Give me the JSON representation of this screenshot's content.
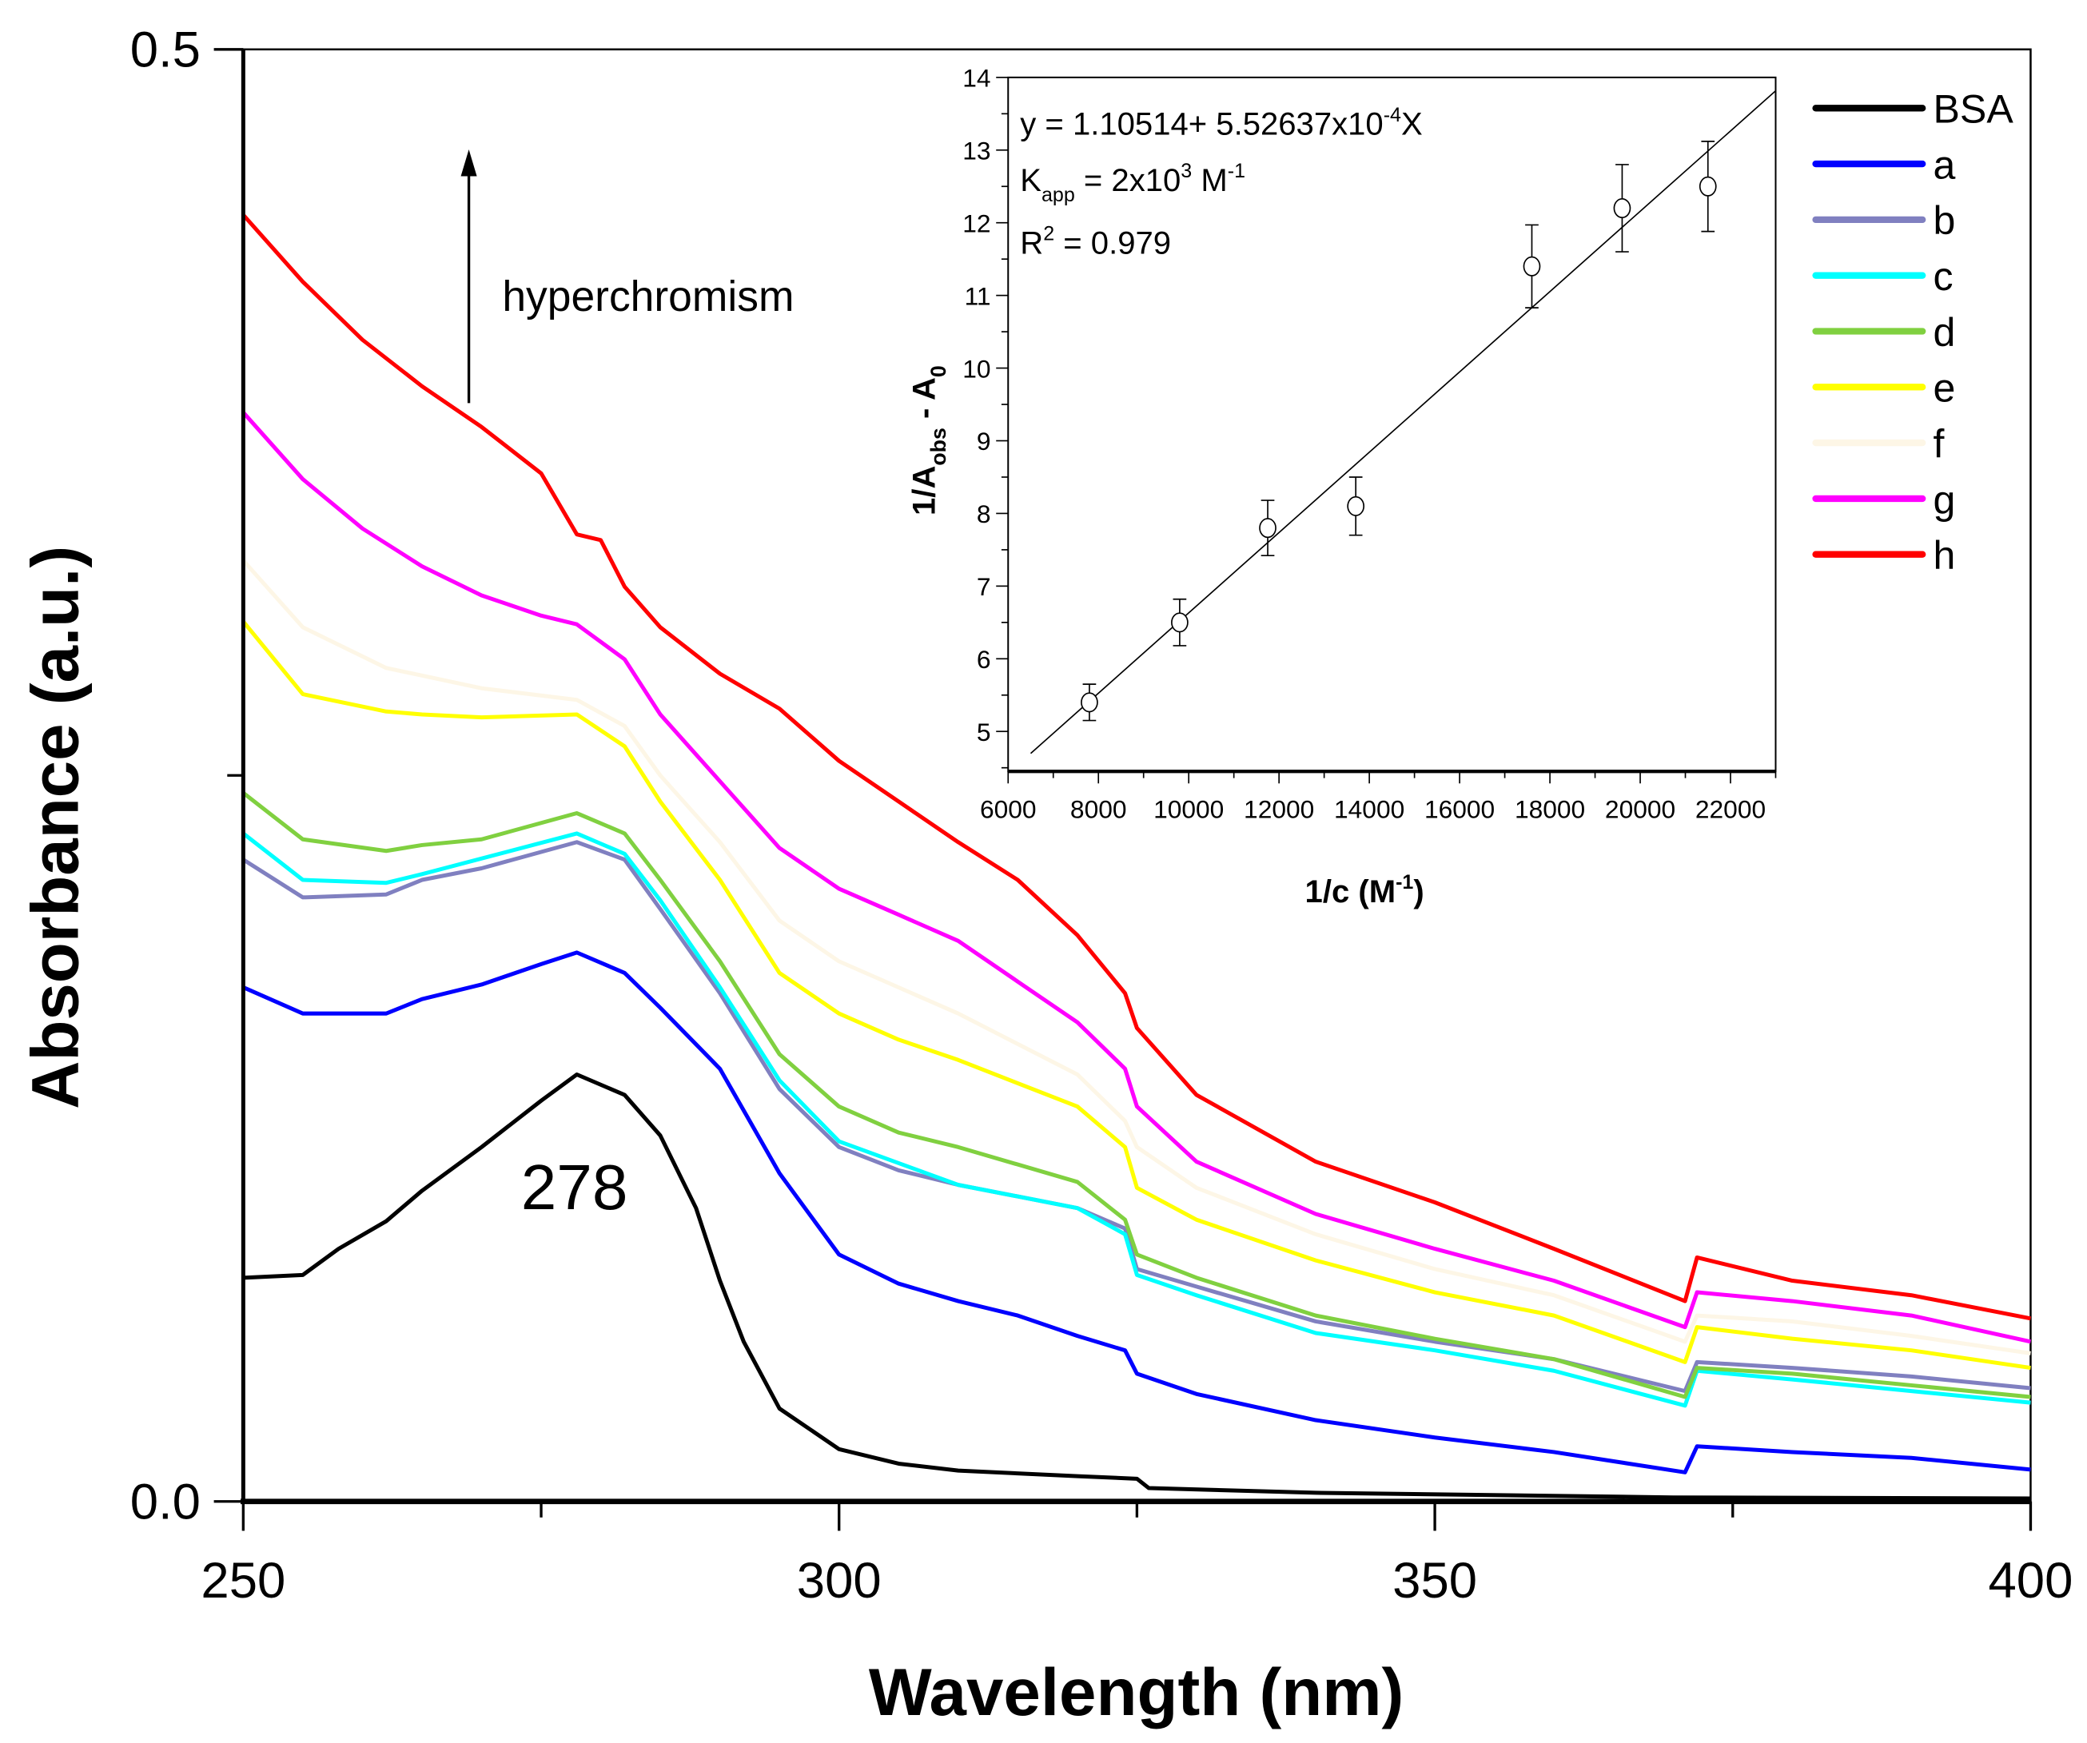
{
  "chart_data": [
    {
      "type": "line",
      "title": "",
      "xlabel": "Wavelength (nm)",
      "ylabel": "Absorbance (a.u.)",
      "xlim": [
        250,
        400
      ],
      "ylim": [
        0,
        0.5
      ],
      "xticks": [
        250,
        300,
        350,
        400
      ],
      "xtick_labels": [
        "250",
        "300",
        "350",
        "400"
      ],
      "yticks": [
        0.0,
        0.5
      ],
      "ytick_labels": [
        "0.0",
        "0.5"
      ],
      "grid": false,
      "legend_position": "top-right",
      "annotations": {
        "arrow_label": "hyperchromism",
        "peak_label": "278"
      },
      "series": [
        {
          "name": "BSA",
          "color": "#000000",
          "points": [
            [
              250,
              0.077
            ],
            [
              255,
              0.078
            ],
            [
              258,
              0.087
            ],
            [
              262,
              0.0965
            ],
            [
              265,
              0.107
            ],
            [
              270,
              0.122
            ],
            [
              275,
              0.138
            ],
            [
              278,
              0.147
            ],
            [
              282,
              0.14
            ],
            [
              285,
              0.126
            ],
            [
              288,
              0.101
            ],
            [
              290,
              0.076
            ],
            [
              292,
              0.055
            ],
            [
              295,
              0.032
            ],
            [
              300,
              0.018
            ],
            [
              305,
              0.013
            ],
            [
              310,
              0.0106
            ],
            [
              320,
              0.0087
            ],
            [
              325,
              0.0078
            ],
            [
              326,
              0.0046
            ],
            [
              340,
              0.003
            ],
            [
              370,
              0.0014
            ],
            [
              400,
              0.001
            ]
          ]
        },
        {
          "name": "a",
          "color": "#0000ff",
          "points": [
            [
              250,
              0.177
            ],
            [
              255,
              0.168
            ],
            [
              262,
              0.168
            ],
            [
              265,
              0.173
            ],
            [
              270,
              0.178
            ],
            [
              275,
              0.185
            ],
            [
              278,
              0.189
            ],
            [
              282,
              0.182
            ],
            [
              285,
              0.17
            ],
            [
              290,
              0.149
            ],
            [
              295,
              0.113
            ],
            [
              300,
              0.085
            ],
            [
              305,
              0.075
            ],
            [
              310,
              0.069
            ],
            [
              315,
              0.064
            ],
            [
              320,
              0.057
            ],
            [
              324,
              0.052
            ],
            [
              325,
              0.044
            ],
            [
              330,
              0.037
            ],
            [
              340,
              0.028
            ],
            [
              350,
              0.022
            ],
            [
              360,
              0.017
            ],
            [
              371,
              0.01
            ],
            [
              372,
              0.019
            ],
            [
              380,
              0.017
            ],
            [
              390,
              0.015
            ],
            [
              400,
              0.011
            ]
          ]
        },
        {
          "name": "b",
          "color": "#8080c0",
          "points": [
            [
              250,
              0.221
            ],
            [
              255,
              0.208
            ],
            [
              262,
              0.209
            ],
            [
              265,
              0.214
            ],
            [
              270,
              0.218
            ],
            [
              278,
              0.227
            ],
            [
              282,
              0.221
            ],
            [
              285,
              0.204
            ],
            [
              290,
              0.175
            ],
            [
              295,
              0.142
            ],
            [
              300,
              0.122
            ],
            [
              305,
              0.114
            ],
            [
              310,
              0.109
            ],
            [
              320,
              0.101
            ],
            [
              324,
              0.094
            ],
            [
              325,
              0.08
            ],
            [
              330,
              0.074
            ],
            [
              340,
              0.062
            ],
            [
              350,
              0.055
            ],
            [
              360,
              0.049
            ],
            [
              371,
              0.038
            ],
            [
              372,
              0.048
            ],
            [
              380,
              0.046
            ],
            [
              390,
              0.043
            ],
            [
              400,
              0.039
            ]
          ]
        },
        {
          "name": "c",
          "color": "#00ffff",
          "points": [
            [
              250,
              0.23
            ],
            [
              255,
              0.214
            ],
            [
              262,
              0.213
            ],
            [
              265,
              0.216
            ],
            [
              278,
              0.23
            ],
            [
              282,
              0.223
            ],
            [
              285,
              0.207
            ],
            [
              290,
              0.177
            ],
            [
              295,
              0.145
            ],
            [
              300,
              0.124
            ],
            [
              310,
              0.109
            ],
            [
              320,
              0.101
            ],
            [
              324,
              0.092
            ],
            [
              325,
              0.078
            ],
            [
              330,
              0.071
            ],
            [
              340,
              0.058
            ],
            [
              350,
              0.052
            ],
            [
              360,
              0.045
            ],
            [
              371,
              0.033
            ],
            [
              372,
              0.045
            ],
            [
              380,
              0.042
            ],
            [
              390,
              0.038
            ],
            [
              400,
              0.034
            ]
          ]
        },
        {
          "name": "d",
          "color": "#80d040",
          "points": [
            [
              250,
              0.244
            ],
            [
              255,
              0.228
            ],
            [
              262,
              0.224
            ],
            [
              265,
              0.226
            ],
            [
              270,
              0.228
            ],
            [
              278,
              0.237
            ],
            [
              282,
              0.23
            ],
            [
              285,
              0.214
            ],
            [
              290,
              0.186
            ],
            [
              295,
              0.154
            ],
            [
              300,
              0.136
            ],
            [
              305,
              0.127
            ],
            [
              310,
              0.122
            ],
            [
              320,
              0.11
            ],
            [
              324,
              0.097
            ],
            [
              325,
              0.085
            ],
            [
              330,
              0.077
            ],
            [
              340,
              0.064
            ],
            [
              350,
              0.056
            ],
            [
              360,
              0.049
            ],
            [
              371,
              0.036
            ],
            [
              372,
              0.046
            ],
            [
              380,
              0.044
            ],
            [
              390,
              0.04
            ],
            [
              400,
              0.036
            ]
          ]
        },
        {
          "name": "e",
          "color": "#ffff00",
          "points": [
            [
              250,
              0.303
            ],
            [
              255,
              0.278
            ],
            [
              262,
              0.272
            ],
            [
              265,
              0.271
            ],
            [
              270,
              0.27
            ],
            [
              278,
              0.271
            ],
            [
              282,
              0.26
            ],
            [
              285,
              0.241
            ],
            [
              290,
              0.214
            ],
            [
              295,
              0.182
            ],
            [
              300,
              0.168
            ],
            [
              305,
              0.159
            ],
            [
              310,
              0.152
            ],
            [
              320,
              0.136
            ],
            [
              324,
              0.122
            ],
            [
              325,
              0.108
            ],
            [
              330,
              0.097
            ],
            [
              340,
              0.083
            ],
            [
              350,
              0.072
            ],
            [
              360,
              0.064
            ],
            [
              371,
              0.048
            ],
            [
              372,
              0.06
            ],
            [
              380,
              0.056
            ],
            [
              390,
              0.052
            ],
            [
              400,
              0.046
            ]
          ]
        },
        {
          "name": "f",
          "color": "#fdf6e6",
          "points": [
            [
              250,
              0.324
            ],
            [
              255,
              0.301
            ],
            [
              262,
              0.287
            ],
            [
              270,
              0.28
            ],
            [
              278,
              0.276
            ],
            [
              282,
              0.267
            ],
            [
              285,
              0.25
            ],
            [
              290,
              0.227
            ],
            [
              295,
              0.2
            ],
            [
              300,
              0.186
            ],
            [
              310,
              0.168
            ],
            [
              320,
              0.147
            ],
            [
              324,
              0.131
            ],
            [
              325,
              0.122
            ],
            [
              330,
              0.108
            ],
            [
              340,
              0.092
            ],
            [
              350,
              0.08
            ],
            [
              360,
              0.071
            ],
            [
              371,
              0.055
            ],
            [
              372,
              0.064
            ],
            [
              380,
              0.062
            ],
            [
              390,
              0.057
            ],
            [
              400,
              0.051
            ]
          ]
        },
        {
          "name": "g",
          "color": "#ff00ff",
          "points": [
            [
              250,
              0.375
            ],
            [
              255,
              0.352
            ],
            [
              260,
              0.335
            ],
            [
              265,
              0.322
            ],
            [
              270,
              0.312
            ],
            [
              275,
              0.305
            ],
            [
              278,
              0.302
            ],
            [
              282,
              0.29
            ],
            [
              285,
              0.271
            ],
            [
              290,
              0.248
            ],
            [
              295,
              0.225
            ],
            [
              300,
              0.211
            ],
            [
              305,
              0.202
            ],
            [
              310,
              0.193
            ],
            [
              315,
              0.179
            ],
            [
              320,
              0.165
            ],
            [
              324,
              0.149
            ],
            [
              325,
              0.136
            ],
            [
              330,
              0.117
            ],
            [
              340,
              0.099
            ],
            [
              350,
              0.087
            ],
            [
              360,
              0.076
            ],
            [
              371,
              0.06
            ],
            [
              372,
              0.072
            ],
            [
              380,
              0.069
            ],
            [
              390,
              0.064
            ],
            [
              400,
              0.055
            ]
          ]
        },
        {
          "name": "h",
          "color": "#ff0000",
          "points": [
            [
              250,
              0.443
            ],
            [
              255,
              0.42
            ],
            [
              260,
              0.4
            ],
            [
              265,
              0.384
            ],
            [
              270,
              0.37
            ],
            [
              275,
              0.354
            ],
            [
              278,
              0.333
            ],
            [
              280,
              0.331
            ],
            [
              282,
              0.315
            ],
            [
              285,
              0.301
            ],
            [
              290,
              0.285
            ],
            [
              295,
              0.273
            ],
            [
              300,
              0.255
            ],
            [
              305,
              0.241
            ],
            [
              310,
              0.227
            ],
            [
              315,
              0.214
            ],
            [
              320,
              0.195
            ],
            [
              324,
              0.175
            ],
            [
              325,
              0.163
            ],
            [
              330,
              0.14
            ],
            [
              340,
              0.117
            ],
            [
              350,
              0.103
            ],
            [
              360,
              0.087
            ],
            [
              371,
              0.069
            ],
            [
              372,
              0.084
            ],
            [
              380,
              0.076
            ],
            [
              390,
              0.071
            ],
            [
              400,
              0.063
            ]
          ]
        }
      ]
    },
    {
      "type": "scatter",
      "title": "",
      "xlabel": "1/c (M",
      "xlabel_sup": "-1",
      "xlabel_end": ")",
      "ylabel": "1/A",
      "ylabel_sub": "obs",
      "ylabel_end": " - A",
      "ylabel_sub2": "0",
      "xlim": [
        6000,
        23000
      ],
      "ylim": [
        4.45,
        14
      ],
      "xticks": [
        6000,
        8000,
        10000,
        12000,
        14000,
        16000,
        18000,
        20000,
        22000
      ],
      "yticks": [
        5,
        6,
        7,
        8,
        9,
        10,
        11,
        12,
        13,
        14
      ],
      "equation": {
        "main": "y = 1.10514+ 5.52637x10",
        "main_sup": "-4",
        "main_end": "X",
        "k_label": "K",
        "k_sub": "app",
        "k_mid": " = 2x10",
        "k_sup": "3",
        "k_unit": " M",
        "k_unit_sup": "-1",
        "r_label": "R",
        "r_sup": "2",
        "r_end": " = 0.979"
      },
      "fit": {
        "intercept": 1.10514,
        "slope": 0.000552637,
        "x_range": [
          6500,
          23000
        ]
      },
      "points": [
        {
          "x": 7800,
          "y": 5.4,
          "err": 0.25
        },
        {
          "x": 9800,
          "y": 6.5,
          "err": 0.32
        },
        {
          "x": 11750,
          "y": 7.8,
          "err": 0.38
        },
        {
          "x": 13700,
          "y": 8.1,
          "err": 0.4
        },
        {
          "x": 17600,
          "y": 11.4,
          "err": 0.57
        },
        {
          "x": 19600,
          "y": 12.2,
          "err": 0.6
        },
        {
          "x": 21500,
          "y": 12.5,
          "err": 0.62
        }
      ]
    }
  ]
}
